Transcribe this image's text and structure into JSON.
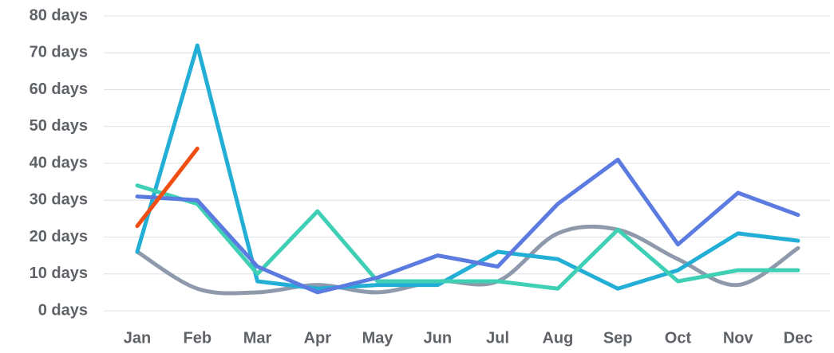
{
  "chart_data": {
    "type": "line",
    "categories": [
      "Jan",
      "Feb",
      "Mar",
      "Apr",
      "May",
      "Jun",
      "Jul",
      "Aug",
      "Sep",
      "Oct",
      "Nov",
      "Dec"
    ],
    "series": [
      {
        "color": "#8e9aab",
        "smooth": true,
        "values": [
          16,
          6,
          5,
          7,
          5,
          8,
          8,
          21,
          22,
          14,
          7,
          17
        ]
      },
      {
        "color": "#23aed6",
        "values": [
          16,
          72,
          8,
          6,
          7,
          7,
          16,
          14,
          6,
          11,
          21,
          19
        ]
      },
      {
        "color": "#3fcfb5",
        "values": [
          34,
          29,
          10,
          27,
          8,
          8,
          8,
          6,
          22,
          8,
          11,
          11
        ]
      },
      {
        "color": "#5b7be0",
        "values": [
          31,
          30,
          12,
          5,
          9,
          15,
          12,
          29,
          41,
          18,
          32,
          26
        ]
      },
      {
        "color": "#f04e12",
        "values": [
          23,
          44,
          null,
          null,
          null,
          null,
          null,
          null,
          null,
          null,
          null,
          null
        ]
      }
    ],
    "ylim": [
      0,
      80
    ],
    "yticks": [
      {
        "value": 0,
        "label": "0 days"
      },
      {
        "value": 10,
        "label": "10 days"
      },
      {
        "value": 20,
        "label": "20 days"
      },
      {
        "value": 30,
        "label": "30 days"
      },
      {
        "value": 40,
        "label": "40 days"
      },
      {
        "value": 50,
        "label": "50 days"
      },
      {
        "value": 60,
        "label": "60 days"
      },
      {
        "value": 70,
        "label": "70 days"
      },
      {
        "value": 80,
        "label": "80 days"
      }
    ],
    "grid": true
  }
}
